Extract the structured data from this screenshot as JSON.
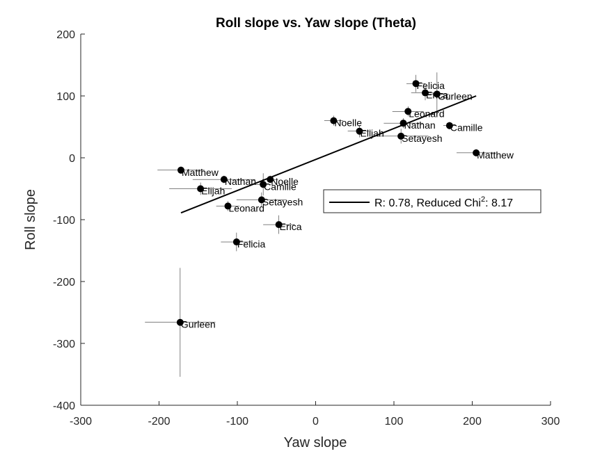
{
  "chart_data": {
    "type": "scatter",
    "title": "Roll slope vs. Yaw slope (Theta)",
    "xlabel": "Yaw slope",
    "ylabel": "Roll slope",
    "xlim": [
      -300,
      300
    ],
    "ylim": [
      -400,
      200
    ],
    "xticks": [
      -300,
      -200,
      -100,
      0,
      100,
      200,
      300
    ],
    "yticks": [
      -400,
      -300,
      -200,
      -100,
      0,
      100,
      200
    ],
    "grid": false,
    "legend_placement": "center-right",
    "colors": {
      "marker": "#000000",
      "errorbar": "#000000",
      "fit": "#000000",
      "axis": "#262626"
    },
    "points": [
      {
        "label": "Felicia",
        "x": 128,
        "y": 120,
        "xerr": 12,
        "yerr": 14
      },
      {
        "label": "Erica",
        "x": 140,
        "y": 105,
        "xerr": 18,
        "yerr": 12
      },
      {
        "label": "Gurleen",
        "x": 155,
        "y": 103,
        "xerr": 15,
        "yerr": 35
      },
      {
        "label": "Leonard",
        "x": 118,
        "y": 75,
        "xerr": 20,
        "yerr": 8
      },
      {
        "label": "Nathan",
        "x": 112,
        "y": 56,
        "xerr": 25,
        "yerr": 8
      },
      {
        "label": "Camille",
        "x": 171,
        "y": 52,
        "xerr": 8,
        "yerr": 6
      },
      {
        "label": "Noelle",
        "x": 23,
        "y": 60,
        "xerr": 12,
        "yerr": 8
      },
      {
        "label": "Elijah",
        "x": 56,
        "y": 43,
        "xerr": 15,
        "yerr": 10
      },
      {
        "label": "Setayesh",
        "x": 109,
        "y": 35,
        "xerr": 35,
        "yerr": 12
      },
      {
        "label": "Matthew",
        "x": 205,
        "y": 8,
        "xerr": 25,
        "yerr": 6
      },
      {
        "label": "Matthew",
        "x": -172,
        "y": -20,
        "xerr": 30,
        "yerr": 6
      },
      {
        "label": "Nathan",
        "x": -117,
        "y": -35,
        "xerr": 40,
        "yerr": 6
      },
      {
        "label": "Noelle",
        "x": -58,
        "y": -35,
        "xerr": 10,
        "yerr": 6
      },
      {
        "label": "Camille",
        "x": -67,
        "y": -43,
        "xerr": 10,
        "yerr": 18
      },
      {
        "label": "Elijah",
        "x": -147,
        "y": -50,
        "xerr": 40,
        "yerr": 10
      },
      {
        "label": "Setayesh",
        "x": -69,
        "y": -68,
        "xerr": 32,
        "yerr": 12
      },
      {
        "label": "Leonard",
        "x": -112,
        "y": -78,
        "xerr": 15,
        "yerr": 8
      },
      {
        "label": "Erica",
        "x": -47,
        "y": -108,
        "xerr": 20,
        "yerr": 15
      },
      {
        "label": "Felicia",
        "x": -101,
        "y": -136,
        "xerr": 20,
        "yerr": 15
      },
      {
        "label": "Gurleen",
        "x": -173,
        "y": -266,
        "xerr": 45,
        "yerr": 88
      }
    ],
    "fit_line": {
      "x1": -172,
      "y1": -89,
      "x2": 205,
      "y2": 100
    },
    "legend": {
      "prefix": "R: 0.78, Reduced Chi",
      "sup": "2",
      "suffix": ": 8.17"
    }
  }
}
